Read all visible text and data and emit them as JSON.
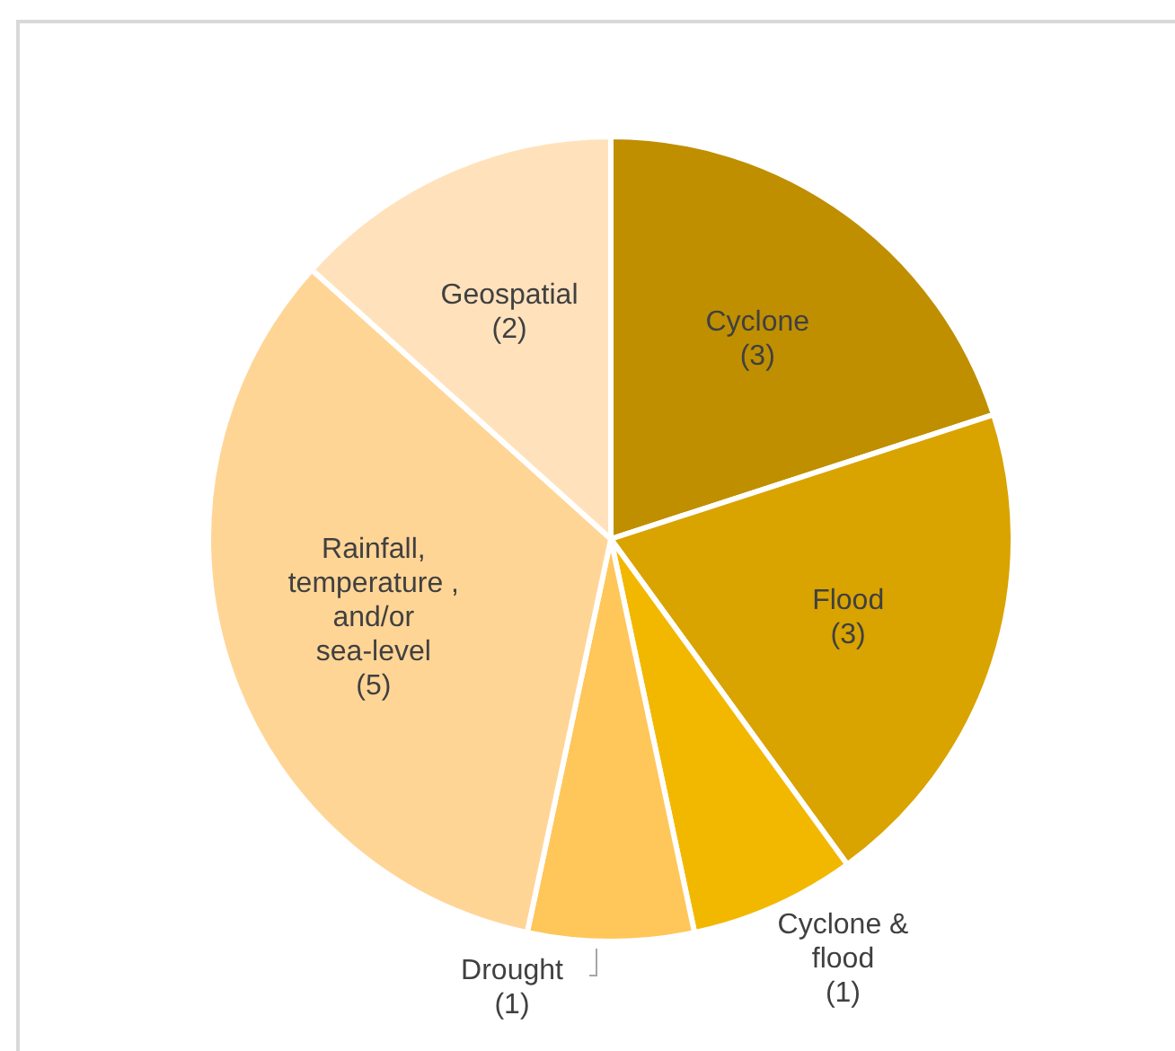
{
  "chart_data": {
    "type": "pie",
    "categories": [
      "Cyclone",
      "Flood",
      "Cyclone & flood",
      "Drought",
      "Rainfall, temperature , and/or sea-level",
      "Geospatial"
    ],
    "values": [
      3,
      3,
      1,
      1,
      5,
      2
    ],
    "value_labels": [
      "(3)",
      "(3)",
      "(1)",
      "(1)",
      "(5)",
      "(2)"
    ],
    "colors": [
      "#bf8f00",
      "#d9a300",
      "#f2b800",
      "#ffc65a",
      "#ffd596",
      "#ffe2bc"
    ]
  }
}
